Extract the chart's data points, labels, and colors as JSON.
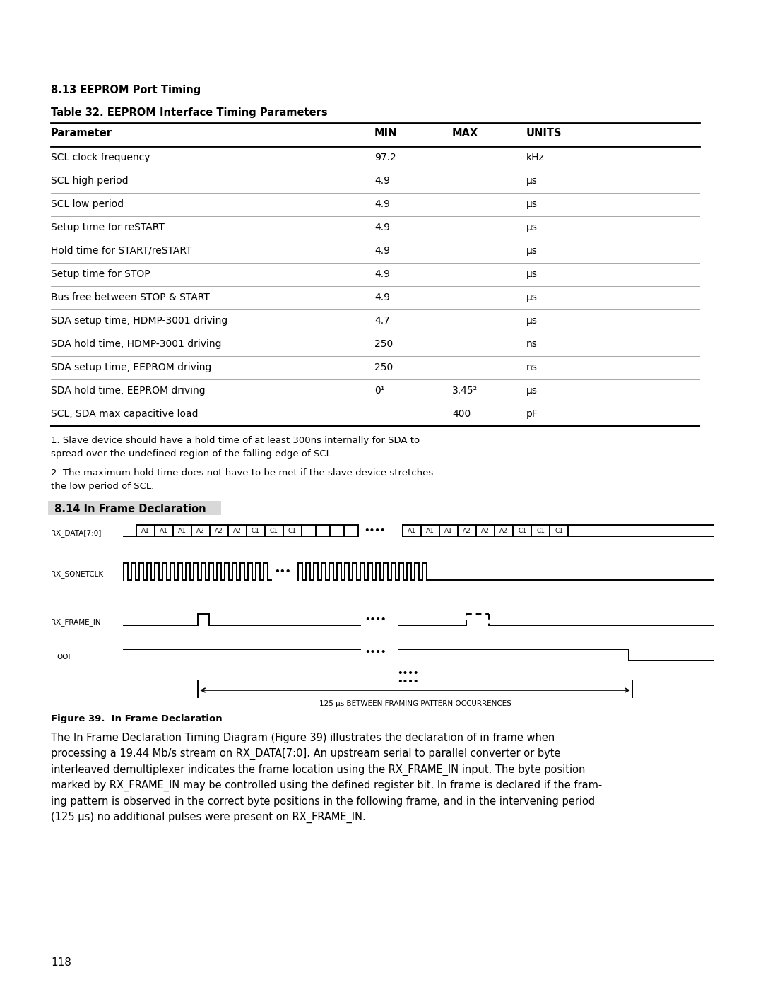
{
  "section_title": "8.13 EEPROM Port Timing",
  "table_title": "Table 32. EEPROM Interface Timing Parameters",
  "col_headers": [
    "Parameter",
    "MIN",
    "MAX",
    "UNITS"
  ],
  "rows": [
    [
      "SCL clock frequency",
      "97.2",
      "",
      "kHz"
    ],
    [
      "SCL high period",
      "4.9",
      "",
      "μs"
    ],
    [
      "SCL low period",
      "4.9",
      "",
      "μs"
    ],
    [
      "Setup time for reSTART",
      "4.9",
      "",
      "μs"
    ],
    [
      "Hold time for START/reSTART",
      "4.9",
      "",
      "μs"
    ],
    [
      "Setup time for STOP",
      "4.9",
      "",
      "μs"
    ],
    [
      "Bus free between STOP & START",
      "4.9",
      "",
      "μs"
    ],
    [
      "SDA setup time, HDMP-3001 driving",
      "4.7",
      "",
      "μs"
    ],
    [
      "SDA hold time, HDMP-3001 driving",
      "250",
      "",
      "ns"
    ],
    [
      "SDA setup time, EEPROM driving",
      "250",
      "",
      "ns"
    ],
    [
      "SDA hold time, EEPROM driving",
      "0¹",
      "3.45²",
      "μs"
    ],
    [
      "SCL, SDA max capacitive load",
      "",
      "400",
      "pF"
    ]
  ],
  "footnote1": "1. Slave device should have a hold time of at least 300ns internally for SDA to\nspread over the undefined region of the falling edge of SCL.",
  "footnote2": "2. The maximum hold time does not have to be met if the slave device stretches\nthe low period of SCL.",
  "frame_section_title": " 8.14 In Frame Declaration",
  "figure_caption": "Figure 39.  In Frame Declaration",
  "body_text": "The In Frame Declaration Timing Diagram (Figure 39) illustrates the declaration of in frame when\nprocessing a 19.44 Mb/s stream on RX_DATA[7:0]. An upstream serial to parallel converter or byte\ninterleaved demultiplexer indicates the frame location using the RX_FRAME_IN input. The byte position\nmarked by RX_FRAME_IN may be controlled using the defined register bit. In frame is declared if the fram-\ning pattern is observed in the correct byte positions in the following frame, and in the intervening period\n(125 μs) no additional pulses were present on RX_FRAME_IN.",
  "page_number": "118",
  "bg_color": "#ffffff",
  "text_color": "#000000"
}
